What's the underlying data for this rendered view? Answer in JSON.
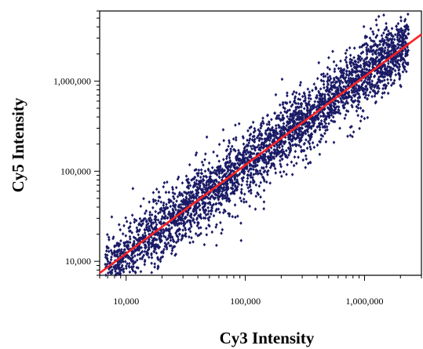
{
  "chart_data": {
    "type": "scatter",
    "title": "",
    "xlabel": "Cy3 Intensity",
    "ylabel": "Cy5 Intensity",
    "xscale": "log",
    "yscale": "log",
    "xlim": [
      6000,
      3000000
    ],
    "ylim": [
      7000,
      6000000
    ],
    "grid": false,
    "legend": "none",
    "x_ticks": [
      {
        "value": 10000,
        "label": "10,000"
      },
      {
        "value": 100000,
        "label": "100,000"
      },
      {
        "value": 1000000,
        "label": "1,000,000"
      }
    ],
    "y_ticks": [
      {
        "value": 10000,
        "label": "10,000"
      },
      {
        "value": 100000,
        "label": "100,000"
      },
      {
        "value": 1000000,
        "label": "1,000,000"
      }
    ],
    "series": [
      {
        "kind": "points",
        "color": "#1a1a66",
        "marker": "diamond",
        "approx_point_count": 3500,
        "trend_samples": [
          {
            "x": 8000,
            "y": 9500
          },
          {
            "x": 10000,
            "y": 12000
          },
          {
            "x": 20000,
            "y": 24000
          },
          {
            "x": 50000,
            "y": 55000
          },
          {
            "x": 100000,
            "y": 110000
          },
          {
            "x": 200000,
            "y": 220000
          },
          {
            "x": 500000,
            "y": 520000
          },
          {
            "x": 1000000,
            "y": 1100000
          },
          {
            "x": 2000000,
            "y": 2300000
          }
        ],
        "spread_log10": 0.18
      },
      {
        "kind": "fit-line",
        "color": "#ff2020",
        "x": [
          6000,
          3000000
        ],
        "y": [
          7400,
          3300000
        ]
      }
    ]
  }
}
